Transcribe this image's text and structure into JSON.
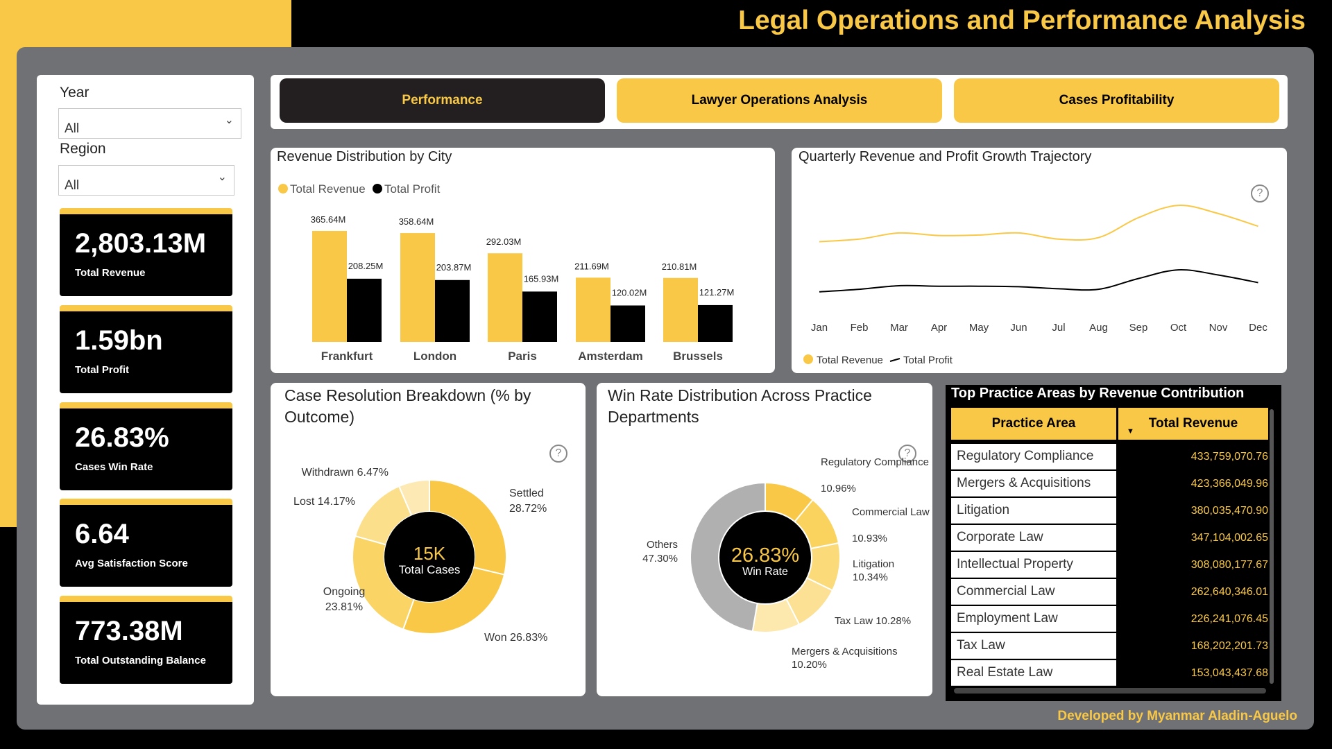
{
  "header": {
    "title": "Legal Operations and Performance Analysis"
  },
  "filters": {
    "year": {
      "label": "Year",
      "value": "All"
    },
    "region": {
      "label": "Region",
      "value": "All"
    }
  },
  "kpis": [
    {
      "value": "2,803.13M",
      "label": "Total Revenue"
    },
    {
      "value": "1.59bn",
      "label": "Total Profit"
    },
    {
      "value": "26.83%",
      "label": "Cases Win Rate"
    },
    {
      "value": "6.64",
      "label": "Avg Satisfaction Score"
    },
    {
      "value": "773.38M",
      "label": "Total Outstanding Balance"
    }
  ],
  "tabs": [
    {
      "label": "Performance",
      "active": true
    },
    {
      "label": "Lawyer Operations Analysis",
      "active": false
    },
    {
      "label": "Cases Profitability",
      "active": false
    }
  ],
  "colors": {
    "accent": "#f9c846",
    "dark": "#000000",
    "frame": "#707174"
  },
  "icons": {
    "help": "question-circle-icon",
    "dropdown": "chevron-down-icon",
    "sort": "sort-desc-icon"
  },
  "footer": {
    "text": "Developed by Myanmar Aladin-Aguelo"
  },
  "chart_data": [
    {
      "type": "bar",
      "title": "Revenue Distribution by City",
      "categories": [
        "Frankfurt",
        "London",
        "Paris",
        "Amsterdam",
        "Brussels"
      ],
      "series": [
        {
          "name": "Total Revenue",
          "values": [
            365.64,
            358.64,
            292.03,
            211.69,
            210.81
          ],
          "labels": [
            "365.64M",
            "358.64M",
            "292.03M",
            "211.69M",
            "210.81M"
          ]
        },
        {
          "name": "Total Profit",
          "values": [
            208.25,
            203.87,
            165.93,
            120.02,
            121.27
          ],
          "labels": [
            "208.25M",
            "203.87M",
            "165.93M",
            "120.02M",
            "121.27M"
          ]
        }
      ],
      "legend": "top-left"
    },
    {
      "type": "line",
      "title": "Quarterly Revenue and Profit Growth Trajectory",
      "categories": [
        "Jan",
        "Feb",
        "Mar",
        "Apr",
        "May",
        "Jun",
        "Jul",
        "Aug",
        "Sep",
        "Oct",
        "Nov",
        "Dec"
      ],
      "series": [
        {
          "name": "Total Revenue",
          "values": [
            224,
            229,
            241,
            236,
            237,
            241,
            229,
            232,
            271,
            295,
            279,
            254
          ]
        },
        {
          "name": "Total Profit",
          "values": [
            126,
            131,
            138,
            137,
            137,
            136,
            132,
            131,
            152,
            169,
            159,
            144
          ]
        }
      ],
      "legend": "bottom-left"
    },
    {
      "type": "pie",
      "title": "Case Resolution Breakdown (% by Outcome)",
      "center_value": "15K",
      "center_label": "Total Cases",
      "slices": [
        {
          "label": "Settled",
          "value": 28.72,
          "text": "28.72%"
        },
        {
          "label": "Won",
          "value": 26.83,
          "text": "26.83%"
        },
        {
          "label": "Ongoing",
          "value": 23.81,
          "text": "23.81%"
        },
        {
          "label": "Lost",
          "value": 14.17,
          "text": "14.17%"
        },
        {
          "label": "Withdrawn",
          "value": 6.47,
          "text": "6.47%"
        }
      ]
    },
    {
      "type": "pie",
      "title": "Win Rate Distribution Across Practice Departments",
      "center_value": "26.83%",
      "center_label": "Win Rate",
      "slices": [
        {
          "label": "Regulatory Compliance",
          "value": 10.96,
          "text": "10.96%"
        },
        {
          "label": "Commercial Law",
          "value": 10.93,
          "text": "10.93%"
        },
        {
          "label": "Litigation",
          "value": 10.34,
          "text": "10.34%"
        },
        {
          "label": "Tax Law",
          "value": 10.28,
          "text": "10.28%"
        },
        {
          "label": "Mergers & Acquisitions",
          "value": 10.2,
          "text": "10.20%"
        },
        {
          "label": "Others",
          "value": 47.3,
          "text": "47.30%"
        }
      ]
    },
    {
      "type": "table",
      "title": "Top Practice Areas by Revenue Contribution",
      "columns": [
        "Practice Area",
        "Total Revenue"
      ],
      "rows": [
        [
          "Regulatory Compliance",
          "433,759,070.76"
        ],
        [
          "Mergers & Acquisitions",
          "423,366,049.96"
        ],
        [
          "Litigation",
          "380,035,470.90"
        ],
        [
          "Corporate Law",
          "347,104,002.65"
        ],
        [
          "Intellectual Property",
          "308,080,177.67"
        ],
        [
          "Commercial Law",
          "262,640,346.01"
        ],
        [
          "Employment Law",
          "226,241,076.45"
        ],
        [
          "Tax Law",
          "168,202,201.73"
        ],
        [
          "Real Estate Law",
          "153,043,437.68"
        ]
      ]
    }
  ]
}
